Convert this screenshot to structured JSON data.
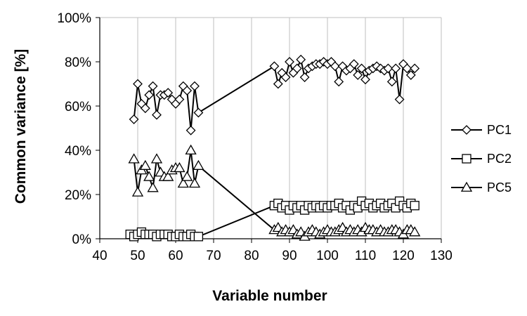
{
  "chart_data": {
    "type": "line",
    "xlabel": "Variable number",
    "ylabel": "Common variance [%]",
    "xlim": [
      40,
      130
    ],
    "ylim": [
      0,
      100
    ],
    "xticks": [
      "40",
      "50",
      "60",
      "70",
      "80",
      "90",
      "100",
      "110",
      "120",
      "130"
    ],
    "yticks": [
      "0%",
      "20%",
      "40%",
      "60%",
      "80%",
      "100%"
    ],
    "grid": "vertical",
    "legend_position": "right",
    "series": [
      {
        "name": "PC1",
        "marker": "diamond",
        "x": [
          49,
          50,
          51,
          52,
          53,
          54,
          55,
          56,
          57,
          58,
          59,
          60,
          61,
          62,
          63,
          64,
          65,
          66,
          86,
          87,
          88,
          89,
          90,
          91,
          92,
          93,
          94,
          95,
          96,
          97,
          98,
          99,
          100,
          101,
          102,
          103,
          104,
          105,
          106,
          107,
          108,
          109,
          110,
          111,
          112,
          113,
          114,
          115,
          116,
          117,
          118,
          119,
          120,
          121,
          122,
          123
        ],
        "y": [
          54,
          70,
          61,
          59,
          65,
          69,
          56,
          65,
          65,
          66,
          63,
          61,
          63,
          69,
          67,
          49,
          69,
          57,
          78,
          70,
          75,
          73,
          80,
          75,
          77,
          81,
          73,
          77,
          78,
          79,
          79,
          80,
          79,
          80,
          78,
          71,
          78,
          76,
          77,
          79,
          74,
          77,
          72,
          76,
          77,
          78,
          77,
          76,
          77,
          71,
          77,
          63,
          79,
          77,
          74,
          77
        ]
      },
      {
        "name": "PC2",
        "marker": "square",
        "x": [
          48,
          49,
          50,
          51,
          52,
          53,
          54,
          55,
          56,
          57,
          58,
          59,
          60,
          61,
          62,
          63,
          64,
          65,
          66,
          86,
          87,
          88,
          89,
          90,
          91,
          92,
          93,
          94,
          95,
          96,
          97,
          98,
          99,
          100,
          101,
          102,
          103,
          104,
          105,
          106,
          107,
          108,
          109,
          110,
          111,
          112,
          113,
          114,
          115,
          116,
          117,
          118,
          119,
          120,
          121,
          122,
          123
        ],
        "y": [
          2,
          1,
          2,
          3,
          2,
          2,
          2,
          1,
          2,
          2,
          2,
          1,
          1,
          2,
          1,
          1,
          2,
          1,
          1,
          15,
          16,
          14,
          15,
          13,
          15,
          14,
          15,
          13,
          15,
          14,
          15,
          14,
          15,
          14,
          15,
          15,
          16,
          14,
          15,
          13,
          15,
          14,
          17,
          15,
          16,
          14,
          15,
          16,
          14,
          15,
          16,
          14,
          17,
          15,
          14,
          16,
          15
        ]
      },
      {
        "name": "PC5",
        "marker": "triangle",
        "x": [
          49,
          50,
          51,
          52,
          53,
          54,
          55,
          56,
          57,
          58,
          59,
          60,
          61,
          62,
          63,
          64,
          65,
          66,
          86,
          87,
          88,
          89,
          90,
          91,
          92,
          93,
          94,
          95,
          96,
          97,
          98,
          99,
          100,
          101,
          102,
          103,
          104,
          105,
          106,
          107,
          108,
          109,
          110,
          111,
          112,
          113,
          114,
          115,
          116,
          117,
          118,
          119,
          120,
          121,
          122,
          123
        ],
        "y": [
          36,
          21,
          31,
          33,
          28,
          23,
          36,
          30,
          28,
          28,
          31,
          32,
          32,
          25,
          28,
          40,
          25,
          33,
          4,
          5,
          3,
          4,
          3,
          4,
          2,
          3,
          1,
          3,
          4,
          3,
          2,
          3,
          4,
          3,
          3,
          4,
          5,
          3,
          4,
          3,
          4,
          3,
          5,
          4,
          4,
          3,
          4,
          3,
          3,
          4,
          4,
          3,
          2,
          4,
          4,
          3
        ]
      }
    ]
  }
}
